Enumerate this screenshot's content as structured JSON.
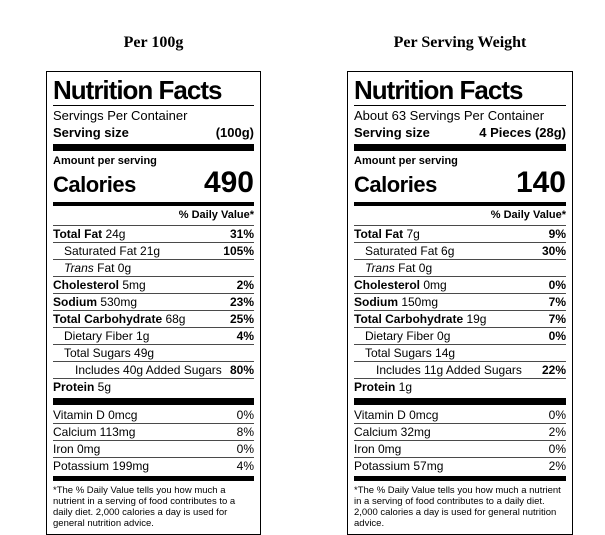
{
  "colors": {
    "text": "#000000",
    "background": "#ffffff",
    "border": "#000000"
  },
  "columns": [
    {
      "title": "Per 100g",
      "label": {
        "heading": "Nutrition Facts",
        "servings_per_container": "Servings Per Container",
        "serving_size_label": "Serving size",
        "serving_size_value": "(100g)",
        "amount_per_serving": "Amount per serving",
        "calories_label": "Calories",
        "calories_value": "490",
        "daily_value_header": "% Daily Value*",
        "rows": [
          {
            "indent": 0,
            "bold": "Total Fat",
            "text": " 24g",
            "percent": "31%",
            "percent_bold": true
          },
          {
            "indent": 1,
            "text": "Saturated Fat 21g",
            "percent": "105%",
            "percent_bold": true
          },
          {
            "indent": 1,
            "italic": "Trans",
            "text": " Fat 0g",
            "percent": ""
          },
          {
            "indent": 0,
            "bold": "Cholesterol",
            "text": " 5mg",
            "percent": "2%",
            "percent_bold": true
          },
          {
            "indent": 0,
            "bold": "Sodium",
            "text": " 530mg",
            "percent": "23%",
            "percent_bold": true
          },
          {
            "indent": 0,
            "bold": "Total Carbohydrate",
            "text": " 68g",
            "percent": "25%",
            "percent_bold": true
          },
          {
            "indent": 1,
            "text": "Dietary Fiber 1g",
            "percent": "4%",
            "percent_bold": true
          },
          {
            "indent": 1,
            "text": "Total Sugars 49g",
            "percent": ""
          },
          {
            "indent": 2,
            "text": "Includes 40g Added Sugars",
            "percent": "80%",
            "percent_bold": true
          },
          {
            "indent": 0,
            "bold": "Protein",
            "text": " 5g",
            "percent": ""
          }
        ],
        "micronutrients": [
          {
            "indent": 0,
            "text": "Vitamin D 0mcg",
            "percent": "0%"
          },
          {
            "indent": 0,
            "text": "Calcium 113mg",
            "percent": "8%"
          },
          {
            "indent": 0,
            "text": "Iron 0mg",
            "percent": "0%"
          },
          {
            "indent": 0,
            "text": "Potassium 199mg",
            "percent": "4%"
          }
        ],
        "footnote": "*The % Daily Value tells you how much a nutrient in a serving of food contributes to a daily diet. 2,000 calories a day is used for general nutrition advice."
      }
    },
    {
      "title": "Per Serving Weight",
      "label": {
        "heading": "Nutrition Facts",
        "servings_per_container": "About 63 Servings Per Container",
        "serving_size_label": "Serving size",
        "serving_size_value": "4 Pieces (28g)",
        "amount_per_serving": "Amount per serving",
        "calories_label": "Calories",
        "calories_value": "140",
        "daily_value_header": "% Daily Value*",
        "rows": [
          {
            "indent": 0,
            "bold": "Total Fat",
            "text": " 7g",
            "percent": "9%",
            "percent_bold": true
          },
          {
            "indent": 1,
            "text": "Saturated Fat 6g",
            "percent": "30%",
            "percent_bold": true
          },
          {
            "indent": 1,
            "italic": "Trans",
            "text": " Fat 0g",
            "percent": ""
          },
          {
            "indent": 0,
            "bold": "Cholesterol",
            "text": " 0mg",
            "percent": "0%",
            "percent_bold": true
          },
          {
            "indent": 0,
            "bold": "Sodium",
            "text": " 150mg",
            "percent": "7%",
            "percent_bold": true
          },
          {
            "indent": 0,
            "bold": "Total Carbohydrate",
            "text": " 19g",
            "percent": "7%",
            "percent_bold": true
          },
          {
            "indent": 1,
            "text": "Dietary Fiber 0g",
            "percent": "0%",
            "percent_bold": true
          },
          {
            "indent": 1,
            "text": "Total Sugars 14g",
            "percent": ""
          },
          {
            "indent": 2,
            "text": "Includes 11g Added Sugars",
            "percent": "22%",
            "percent_bold": true
          },
          {
            "indent": 0,
            "bold": "Protein",
            "text": " 1g",
            "percent": ""
          }
        ],
        "micronutrients": [
          {
            "indent": 0,
            "text": "Vitamin D 0mcg",
            "percent": "0%"
          },
          {
            "indent": 0,
            "text": "Calcium 32mg",
            "percent": "2%"
          },
          {
            "indent": 0,
            "text": "Iron 0mg",
            "percent": "0%"
          },
          {
            "indent": 0,
            "text": "Potassium 57mg",
            "percent": "2%"
          }
        ],
        "footnote": "*The % Daily Value tells you how much a nutrient in a serving of food contributes to a daily diet. 2,000 calories a day is used for general nutrition advice."
      }
    }
  ]
}
